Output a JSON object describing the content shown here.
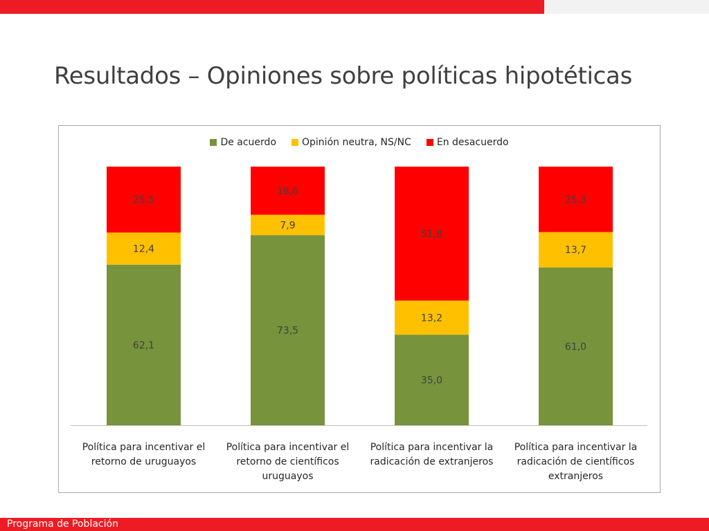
{
  "slide": {
    "title": "Resultados – Opiniones sobre políticas hipotéticas",
    "footer": "Programa de Población",
    "colors": {
      "accent": "#ed1c24",
      "accent_light": "#f2f2f2"
    }
  },
  "chart_data": {
    "type": "bar",
    "stacked": true,
    "categories": [
      [
        "Política para incentivar el",
        "retorno de uruguayos"
      ],
      [
        "Política para incentivar el",
        "retorno de científicos",
        "uruguayos"
      ],
      [
        "Política para incentivar la",
        "radicación de extranjeros"
      ],
      [
        "Política para incentivar la",
        "radicación de científicos",
        "extranjeros"
      ]
    ],
    "series": [
      {
        "name": "De acuerdo",
        "color": "#77933c",
        "values": [
          62.1,
          73.5,
          35.0,
          61.0
        ],
        "labels": [
          "62,1",
          "73,5",
          "35,0",
          "61,0"
        ]
      },
      {
        "name": "Opinión neutra, NS/NC",
        "color": "#ffc000",
        "values": [
          12.4,
          7.9,
          13.2,
          13.7
        ],
        "labels": [
          "12,4",
          "7,9",
          "13,2",
          "13,7"
        ]
      },
      {
        "name": "En desacuerdo",
        "color": "#ff0000",
        "values": [
          25.5,
          18.6,
          51.8,
          25.3
        ],
        "labels": [
          "25,5",
          "18,6",
          "51,8",
          "25,3"
        ]
      }
    ],
    "ylim": [
      0,
      100
    ],
    "legend_position": "top",
    "grid": false
  }
}
